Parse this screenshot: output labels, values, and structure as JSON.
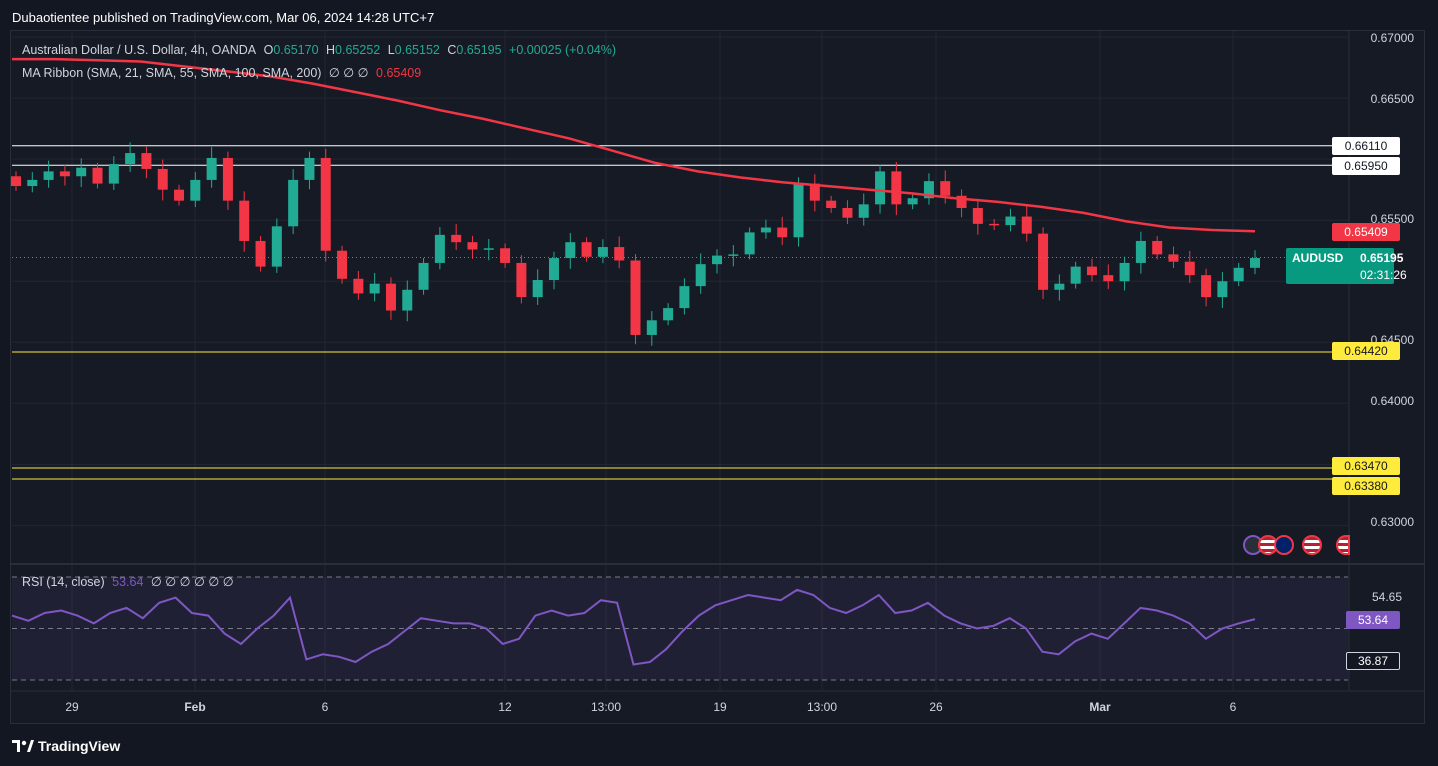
{
  "header": {
    "credit": "Dubaotientee published on TradingView.com, Mar 06, 2024 14:28 UTC+7"
  },
  "legend": {
    "symbol": "Australian Dollar / U.S. Dollar, 4h, OANDA",
    "o_label": "O",
    "o_value": "0.65170",
    "h_label": "H",
    "h_value": "0.65252",
    "l_label": "L",
    "l_value": "0.65152",
    "c_label": "C",
    "c_value": "0.65195",
    "change": "+0.00025 (+0.04%)",
    "ma_label": "MA Ribbon (SMA, 21, SMA, 55, SMA, 100, SMA, 200)",
    "ma_placeholders": "∅ ∅ ∅",
    "ma_value": "0.65409"
  },
  "rsi_legend": {
    "label": "RSI (14, close)",
    "value": "53.64",
    "placeholders": "∅ ∅ ∅ ∅ ∅ ∅"
  },
  "price_axis": [
    "0.67000",
    "0.66500",
    "0.65500",
    "0.64500",
    "0.64000",
    "0.63000"
  ],
  "price_tags": {
    "t1": "0.66110",
    "t2": "0.65950",
    "ma": "0.65409",
    "t3": "0.64420",
    "t4": "0.63470",
    "t5": "0.63380"
  },
  "current": {
    "symbol": "AUDUSD",
    "price": "0.65195",
    "countdown": "02:31:26"
  },
  "rsi_axis": {
    "upper": "54.65",
    "current": "53.64",
    "lower": "36.87"
  },
  "time_axis": [
    "29",
    "Feb",
    "6",
    "12",
    "13:00",
    "19",
    "13:00",
    "26",
    "Mar",
    "6"
  ],
  "footer": {
    "logo": "TradingView"
  },
  "colors": {
    "bg": "#131722",
    "up": "#22ab94",
    "down": "#f23645",
    "ma": "#f23645",
    "rsi": "#7e57c2",
    "level": "#ffeb3b",
    "white_level": "#ffffff"
  },
  "chart_data": {
    "type": "candlestick",
    "title": "Australian Dollar / U.S. Dollar, 4h, OANDA",
    "ylim": [
      0.627,
      0.6705
    ],
    "horizontal_levels": [
      0.6611,
      0.6595,
      0.6442,
      0.6347,
      0.6338
    ],
    "ma200": [
      0.6682,
      0.6682,
      0.6681,
      0.668,
      0.6676,
      0.6672,
      0.6668,
      0.6662,
      0.6655,
      0.6648,
      0.664,
      0.6633,
      0.6625,
      0.6617,
      0.6607,
      0.6597,
      0.659,
      0.6585,
      0.6581,
      0.6578,
      0.6575,
      0.6572,
      0.6568,
      0.6565,
      0.6561,
      0.6556,
      0.6549,
      0.6544,
      0.6542,
      0.6541
    ],
    "ohlc_close": [
      0.6578,
      0.6583,
      0.659,
      0.6586,
      0.6593,
      0.658,
      0.6596,
      0.6605,
      0.6592,
      0.6575,
      0.6566,
      0.6583,
      0.6601,
      0.6566,
      0.6533,
      0.6512,
      0.6545,
      0.6583,
      0.6601,
      0.6525,
      0.6502,
      0.649,
      0.6498,
      0.6476,
      0.6493,
      0.6515,
      0.6538,
      0.6532,
      0.6526,
      0.6527,
      0.6515,
      0.6487,
      0.6501,
      0.6519,
      0.6532,
      0.652,
      0.6528,
      0.6517,
      0.6456,
      0.6468,
      0.6478,
      0.6496,
      0.6514,
      0.6521,
      0.6522,
      0.654,
      0.6544,
      0.6536,
      0.658,
      0.6566,
      0.656,
      0.6552,
      0.6563,
      0.659,
      0.6563,
      0.6568,
      0.6582,
      0.657,
      0.656,
      0.6547,
      0.6546,
      0.6553,
      0.6539,
      0.6493,
      0.6498,
      0.6512,
      0.6505,
      0.65,
      0.6515,
      0.6533,
      0.6522,
      0.6516,
      0.6505,
      0.6487,
      0.65,
      0.6511,
      0.6519
    ],
    "rsi": [
      55,
      53,
      56,
      57,
      55,
      52,
      56,
      58,
      54,
      60,
      62,
      56,
      55,
      48,
      44,
      50,
      55,
      62,
      38,
      40,
      39,
      37,
      41,
      44,
      49,
      54,
      53,
      52,
      52,
      50,
      44,
      46,
      55,
      57,
      55,
      56,
      61,
      60,
      36,
      37,
      42,
      49,
      55,
      59,
      61,
      63,
      62,
      61,
      65,
      63,
      58,
      56,
      59,
      63,
      56,
      57,
      60,
      55,
      52,
      50,
      51,
      54,
      50,
      41,
      40,
      45,
      48,
      46,
      52,
      58,
      57,
      55,
      52,
      46,
      50,
      52,
      53.64
    ],
    "rsi_levels": {
      "upper": 70,
      "middle": 50,
      "lower": 30
    }
  }
}
